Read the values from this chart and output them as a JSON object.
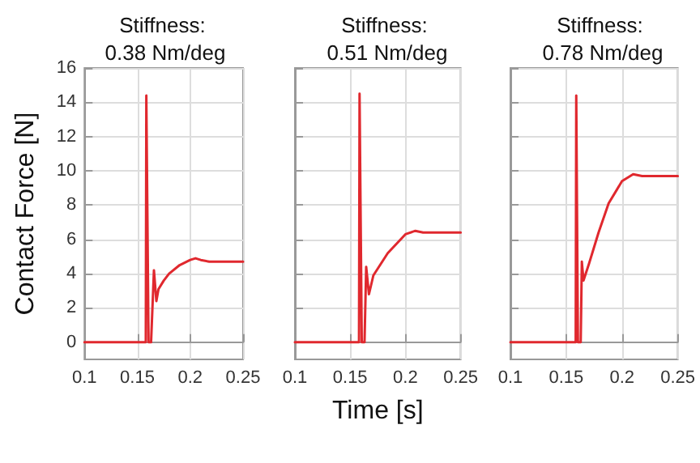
{
  "chart_data": [
    {
      "type": "line",
      "title": "Stiffness: 0.38 Nm/deg",
      "ylabel": "Contact Force [N]",
      "xlim": [
        0.1,
        0.25
      ],
      "xticks": [
        0.1,
        0.15,
        0.2,
        0.25
      ],
      "ylim": [
        -1,
        16
      ],
      "yticks": [
        0,
        2,
        4,
        6,
        8,
        10,
        12,
        14,
        16
      ],
      "grid": true,
      "marker": "none",
      "line_style": "solid",
      "series": [
        {
          "color": "#e0282e",
          "x": [
            0.1,
            0.158,
            0.1585,
            0.1606,
            0.163,
            0.1657,
            0.168,
            0.17,
            0.175,
            0.18,
            0.19,
            0.2,
            0.205,
            0.21,
            0.218,
            0.25
          ],
          "values": [
            0,
            0,
            14.4,
            0,
            0,
            4.2,
            2.4,
            3.1,
            3.6,
            4.0,
            4.5,
            4.8,
            4.9,
            4.8,
            4.7,
            4.7
          ]
        }
      ]
    },
    {
      "type": "line",
      "title": "Stiffness: 0.51 Nm/deg",
      "xlabel": "Time [s]",
      "xlim": [
        0.1,
        0.25
      ],
      "xticks": [
        0.1,
        0.15,
        0.2,
        0.25
      ],
      "ylim": [
        -1,
        16
      ],
      "yticks": [
        0,
        2,
        4,
        6,
        8,
        10,
        12,
        14,
        16
      ],
      "grid": true,
      "marker": "none",
      "line_style": "solid",
      "tick_labels": "x",
      "series": [
        {
          "color": "#e0282e",
          "x": [
            0.1,
            0.158,
            0.1585,
            0.1605,
            0.163,
            0.1645,
            0.167,
            0.171,
            0.184,
            0.2,
            0.209,
            0.216,
            0.25
          ],
          "values": [
            0,
            0,
            14.5,
            0,
            0,
            4.4,
            2.8,
            3.9,
            5.2,
            6.3,
            6.5,
            6.4,
            6.4
          ]
        }
      ]
    },
    {
      "type": "line",
      "title": "Stiffness: 0.78 Nm/deg",
      "xlim": [
        0.1,
        0.25
      ],
      "xticks": [
        0.1,
        0.15,
        0.2,
        0.25
      ],
      "ylim": [
        -1,
        16
      ],
      "yticks": [
        0,
        2,
        4,
        6,
        8,
        10,
        12,
        14,
        16
      ],
      "grid": true,
      "marker": "none",
      "line_style": "solid",
      "tick_labels": "x",
      "series": [
        {
          "color": "#e0282e",
          "x": [
            0.1,
            0.1585,
            0.159,
            0.1605,
            0.163,
            0.164,
            0.1655,
            0.1705,
            0.179,
            0.188,
            0.2,
            0.21,
            0.218,
            0.25
          ],
          "values": [
            0,
            0,
            14.4,
            0,
            0,
            4.7,
            3.6,
            4.6,
            6.4,
            8.1,
            9.4,
            9.8,
            9.7,
            9.7
          ]
        }
      ]
    }
  ]
}
